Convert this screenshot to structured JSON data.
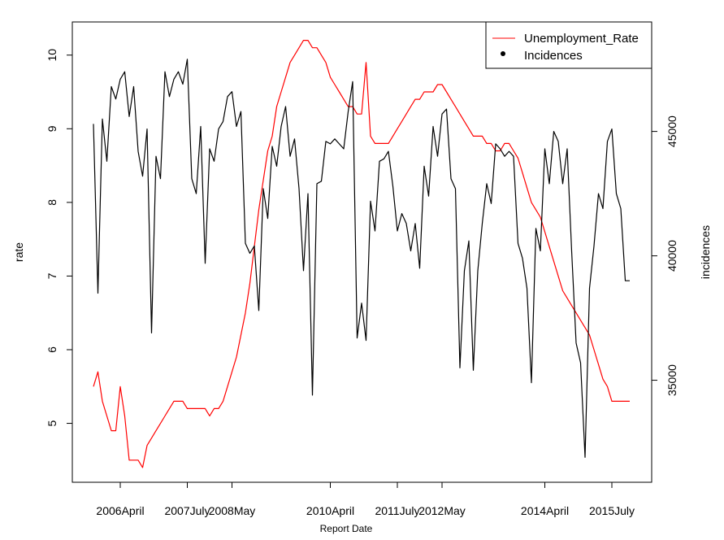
{
  "chart_data": {
    "type": "line",
    "title": "",
    "xlabel": "Report Date",
    "ylabel": "rate",
    "y2label": "incidences",
    "x_tick_labels": [
      "2006April",
      "2007July",
      "2008May",
      "2010April",
      "2011July",
      "2012May",
      "2014April",
      "2015July"
    ],
    "x_tick_index": [
      6,
      21,
      31,
      53,
      68,
      78,
      101,
      116
    ],
    "y_ticks": [
      5,
      6,
      7,
      8,
      9,
      10
    ],
    "ylim": [
      4.2,
      10.45
    ],
    "y2_ticks": [
      35000,
      40000,
      45000
    ],
    "y2lim": [
      30900,
      49400
    ],
    "legend": {
      "position": "top-right",
      "entries": [
        {
          "label": "Unemployment_Rate",
          "marker": "line",
          "color": "#ff0000"
        },
        {
          "label": "Incidences",
          "marker": "point",
          "color": "#000000"
        }
      ]
    },
    "series": [
      {
        "name": "Unemployment_Rate",
        "axis": "left",
        "color": "#ff0000",
        "values": [
          5.5,
          5.7,
          5.3,
          5.1,
          4.9,
          4.9,
          5.5,
          5.1,
          4.5,
          4.5,
          4.5,
          4.4,
          4.7,
          4.8,
          4.9,
          5.0,
          5.1,
          5.2,
          5.3,
          5.3,
          5.3,
          5.2,
          5.2,
          5.2,
          5.2,
          5.2,
          5.1,
          5.2,
          5.2,
          5.3,
          5.5,
          5.7,
          5.9,
          6.2,
          6.5,
          6.9,
          7.4,
          7.9,
          8.3,
          8.7,
          8.9,
          9.3,
          9.5,
          9.7,
          9.9,
          10.0,
          10.1,
          10.2,
          10.2,
          10.1,
          10.1,
          10.0,
          9.9,
          9.7,
          9.6,
          9.5,
          9.4,
          9.3,
          9.3,
          9.2,
          9.2,
          9.9,
          8.9,
          8.8,
          8.8,
          8.8,
          8.8,
          8.9,
          9.0,
          9.1,
          9.2,
          9.3,
          9.4,
          9.4,
          9.5,
          9.5,
          9.5,
          9.6,
          9.6,
          9.5,
          9.4,
          9.3,
          9.2,
          9.1,
          9.0,
          8.9,
          8.9,
          8.9,
          8.8,
          8.8,
          8.7,
          8.7,
          8.8,
          8.8,
          8.7,
          8.6,
          8.4,
          8.2,
          8.0,
          7.9,
          7.8,
          7.6,
          7.4,
          7.2,
          7.0,
          6.8,
          6.7,
          6.6,
          6.5,
          6.4,
          6.3,
          6.2,
          6.0,
          5.8,
          5.6,
          5.5,
          5.3,
          5.3,
          5.3,
          5.3,
          5.3
        ]
      },
      {
        "name": "Incidences",
        "axis": "right",
        "color": "#000000",
        "values": [
          45300,
          38500,
          45500,
          43800,
          46800,
          46300,
          47100,
          47400,
          45600,
          46800,
          44200,
          43200,
          45100,
          36900,
          44000,
          43100,
          47400,
          46400,
          47100,
          47400,
          46900,
          47900,
          43100,
          42500,
          45200,
          39700,
          44300,
          43800,
          45100,
          45400,
          46400,
          46600,
          45200,
          45800,
          40500,
          40100,
          40400,
          37800,
          42700,
          41500,
          44400,
          43600,
          45200,
          46000,
          44000,
          44700,
          42700,
          39400,
          42500,
          34400,
          42900,
          43000,
          44600,
          44500,
          44700,
          44500,
          44300,
          45800,
          47000,
          36700,
          38100,
          36600,
          42200,
          41000,
          43800,
          43900,
          44200,
          42800,
          41000,
          41700,
          41300,
          40200,
          41300,
          39500,
          43600,
          42400,
          45200,
          44000,
          45700,
          45900,
          43100,
          42700,
          35500,
          39400,
          40600,
          35400,
          39400,
          41300,
          42900,
          42100,
          44500,
          44300,
          44000,
          44200,
          44000,
          40500,
          39900,
          38700,
          34900,
          41100,
          40200,
          44300,
          42900,
          45000,
          44600,
          42900,
          44300,
          40200,
          36500,
          35700,
          31900,
          38700,
          40400,
          42500,
          41900,
          44600,
          45100,
          42500,
          41900,
          39000,
          39000
        ]
      }
    ]
  }
}
